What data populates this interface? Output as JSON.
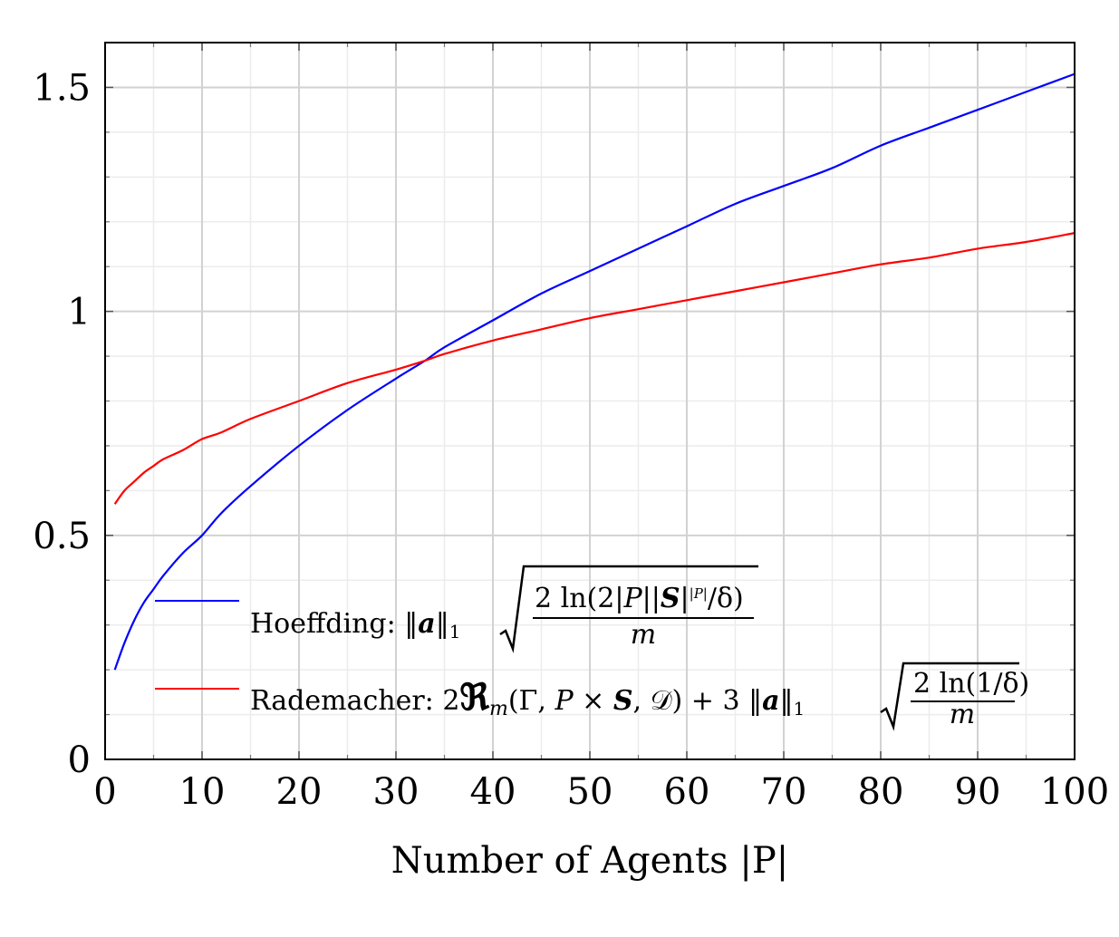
{
  "chart_data": {
    "type": "line",
    "title": "",
    "xlabel": "Number of Agents |P|",
    "ylabel": "",
    "xlim": [
      0,
      100
    ],
    "ylim": [
      0,
      1.6
    ],
    "x_ticks": [
      0,
      10,
      20,
      30,
      40,
      50,
      60,
      70,
      80,
      90,
      100
    ],
    "x_tick_labels": [
      "0",
      "10",
      "20",
      "30",
      "40",
      "50",
      "60",
      "70",
      "80",
      "90",
      "100"
    ],
    "y_ticks": [
      0,
      0.5,
      1,
      1.5
    ],
    "y_tick_labels": [
      "0",
      "0.5",
      "1",
      "1.5"
    ],
    "grid": true,
    "minor_grid": true,
    "legend_position": "bottom-left",
    "series": [
      {
        "name": "Hoeffding",
        "legend_label": "Hoeffding: ‖a‖₁√(2 ln(2|P||S|^|P|/δ) / m)",
        "color": "#0000ff",
        "x": [
          1,
          2,
          3,
          4,
          5,
          6,
          8,
          10,
          12,
          15,
          20,
          25,
          30,
          33,
          35,
          40,
          45,
          50,
          55,
          60,
          65,
          70,
          75,
          80,
          85,
          90,
          95,
          100
        ],
        "y": [
          0.2,
          0.26,
          0.31,
          0.35,
          0.38,
          0.41,
          0.46,
          0.5,
          0.55,
          0.61,
          0.7,
          0.78,
          0.85,
          0.89,
          0.92,
          0.98,
          1.04,
          1.09,
          1.14,
          1.19,
          1.24,
          1.28,
          1.32,
          1.37,
          1.41,
          1.45,
          1.49,
          1.53
        ]
      },
      {
        "name": "Rademacher",
        "legend_label": "Rademacher: 2ℜm(Γ, P × S, 𝒟) + 3‖a‖₁√(2 ln(1/δ) / m)",
        "color": "#ff0000",
        "x": [
          1,
          2,
          3,
          4,
          5,
          6,
          8,
          10,
          12,
          15,
          20,
          25,
          30,
          33,
          35,
          40,
          45,
          50,
          55,
          60,
          65,
          70,
          75,
          80,
          85,
          90,
          95,
          100
        ],
        "y": [
          0.57,
          0.6,
          0.62,
          0.64,
          0.655,
          0.67,
          0.69,
          0.715,
          0.73,
          0.76,
          0.8,
          0.84,
          0.87,
          0.89,
          0.905,
          0.935,
          0.96,
          0.985,
          1.005,
          1.025,
          1.045,
          1.065,
          1.085,
          1.105,
          1.12,
          1.14,
          1.155,
          1.175
        ]
      }
    ]
  }
}
